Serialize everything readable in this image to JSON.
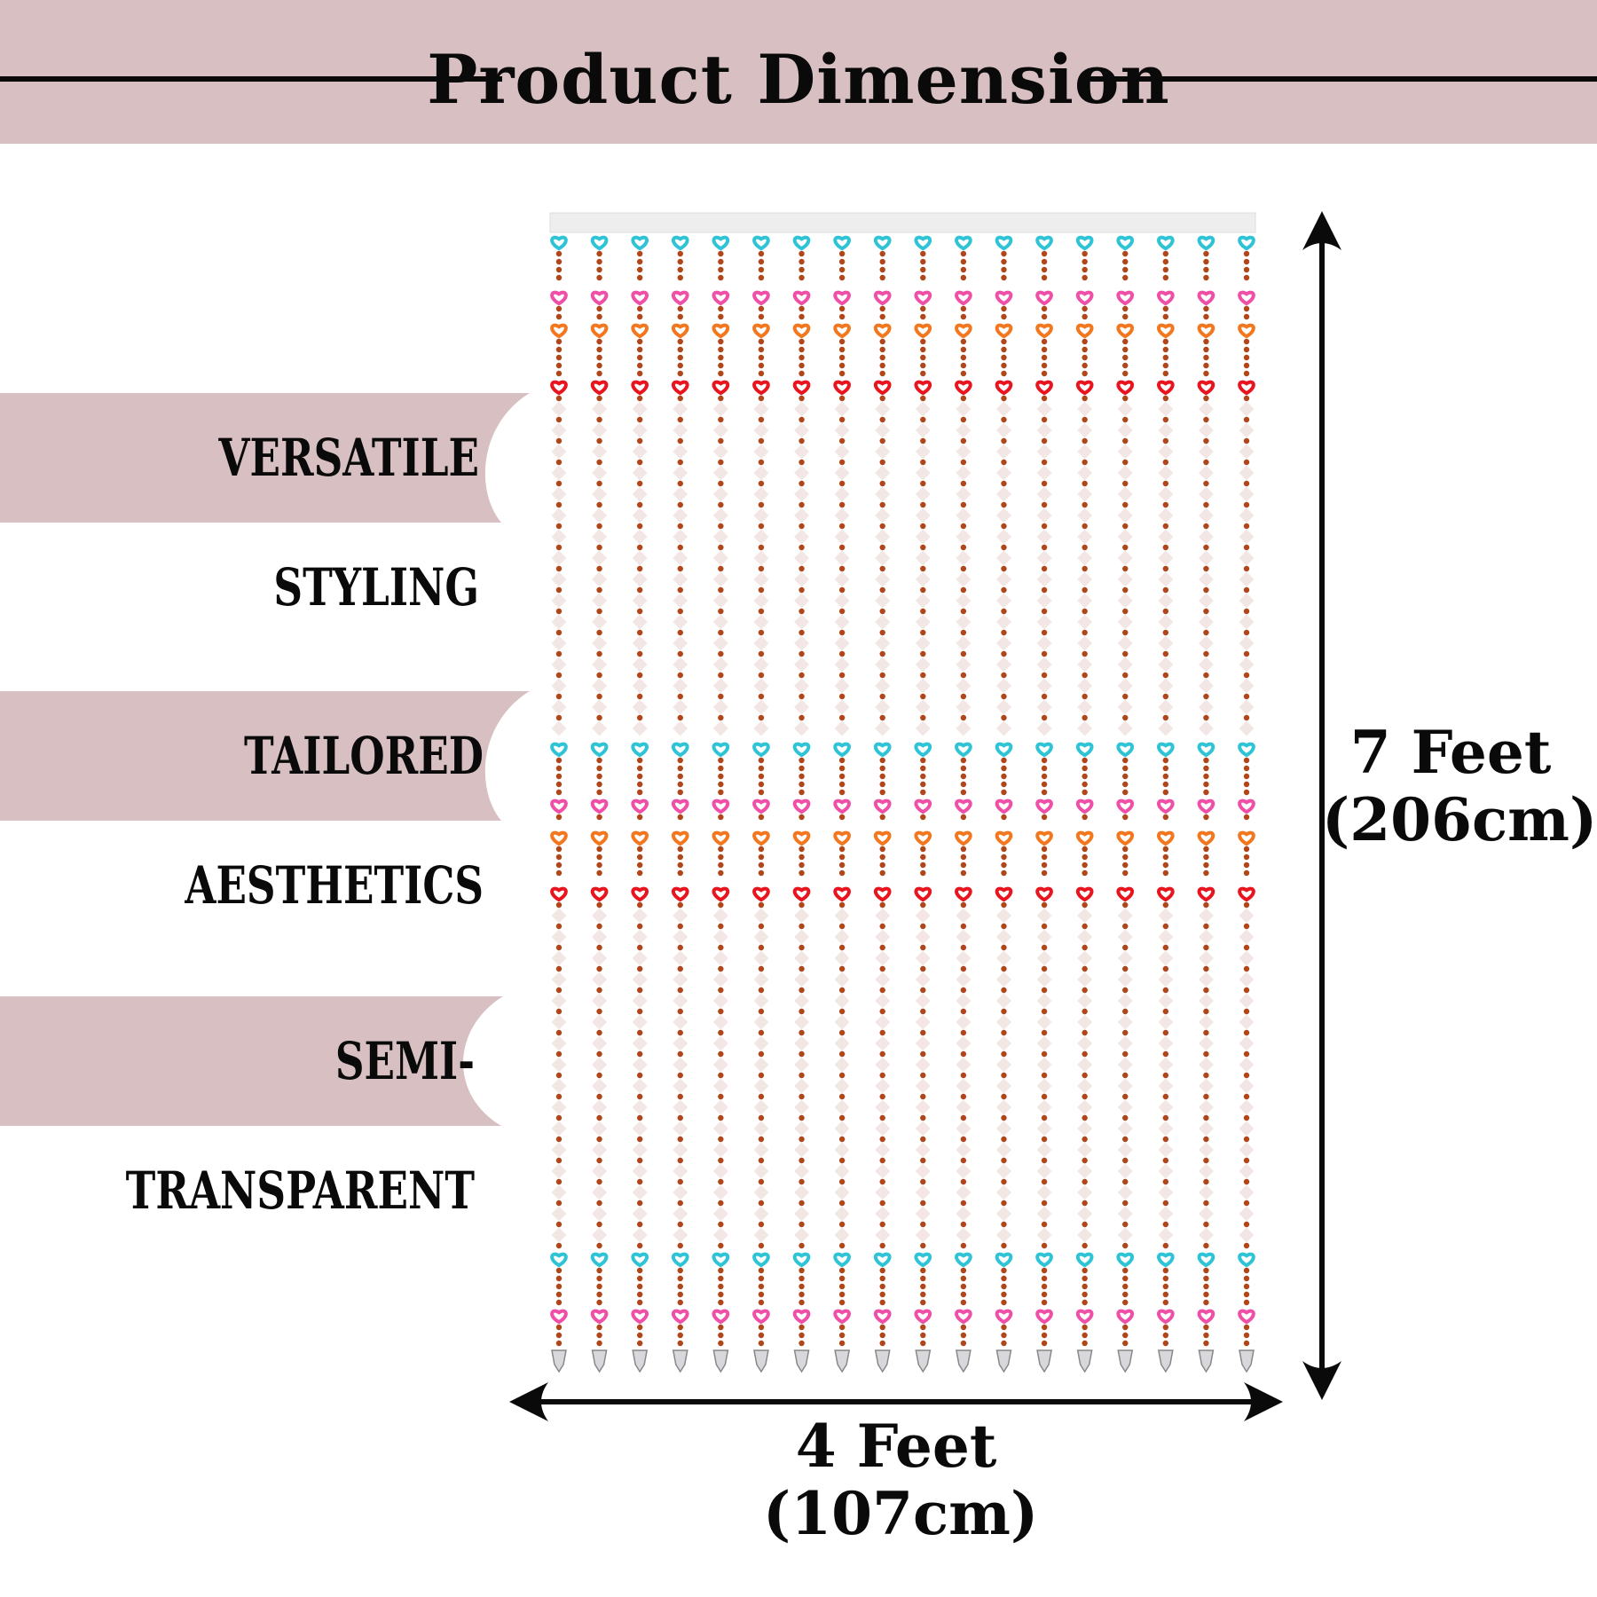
{
  "header": {
    "title": "Product Dimension"
  },
  "features": [
    {
      "label": "VERSATILE STYLING"
    },
    {
      "label": "TAILORED AESTHETICS"
    },
    {
      "label": "SEMI-TRANSPARENT"
    }
  ],
  "dimensions": {
    "height_imperial": "7 Feet",
    "height_metric": "(206cm)",
    "width_imperial": "4 Feet",
    "width_metric": "(107cm)"
  },
  "curtain": {
    "strand_count": 18,
    "heart_colors": {
      "cyan": "#2ec4d6",
      "pink": "#ef4fa6",
      "orange": "#f2771e",
      "red": "#e8141e"
    },
    "bead_color": "#b0461a",
    "crystal_color": "#f2e7e4"
  },
  "colors": {
    "band": "#d8c0c2",
    "text": "#0a0a0a"
  }
}
